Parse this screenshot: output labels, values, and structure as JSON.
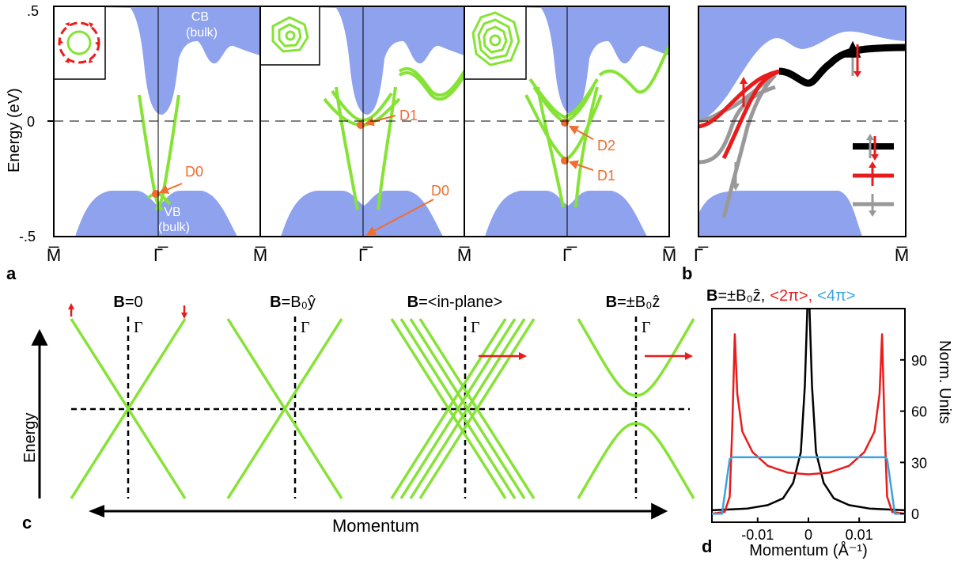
{
  "colors": {
    "bulk": "#8ea2ee",
    "surface": "#86e336",
    "dirac": "#ef6d2f",
    "spin_red": "#e81c1c",
    "spin_gray": "#999999",
    "spin_black": "#000000",
    "cyan": "#3aa3df"
  },
  "panel_a": {
    "ylabel": "Energy (eV)",
    "yticks": [
      ".5",
      "0",
      "-.5"
    ],
    "label": "a",
    "bulk_labels": [
      "CB",
      "(bulk)",
      "VB",
      "(bulk)"
    ],
    "xticks": [
      "M̅",
      "Γ̅",
      "M̅",
      "Γ̅",
      "M̅",
      "Γ̅",
      "M̅"
    ],
    "dirac_labels": [
      "D0",
      "D1",
      "D0",
      "D2",
      "D1"
    ]
  },
  "panel_b": {
    "label": "b",
    "xticks": [
      "Γ̅",
      "M̅"
    ]
  },
  "panel_c": {
    "label": "c",
    "titles": [
      {
        "bold": "B",
        "rest": "=0"
      },
      {
        "bold": "B",
        "rest": "=B₀ŷ"
      },
      {
        "bold": "B",
        "rest": "=<in-plane>"
      },
      {
        "bold": "B",
        "rest": "=±B₀ẑ"
      }
    ],
    "gamma": "Γ",
    "ylabel": "Energy",
    "xlabel": "Momentum"
  },
  "panel_d": {
    "label": "d",
    "title_bold": "B",
    "title_rest": "=±B₀ẑ,",
    "title_red": "<2π>,",
    "title_cyan": "<4π>",
    "ylabel": "Norm. Units",
    "xlabel": "Momentum (Å⁻¹)",
    "yticks": [
      "0",
      "30",
      "60",
      "90"
    ],
    "xticks": [
      "-0.01",
      "0",
      "0.01"
    ]
  },
  "chart_data": {
    "type": "line",
    "x_unit": "Å⁻¹",
    "xlim": [
      -0.019,
      0.019
    ],
    "ylim": [
      -5,
      120
    ],
    "series": [
      {
        "color": "black",
        "x": [
          -0.019,
          -0.012,
          -0.008,
          -0.005,
          -0.003,
          -0.0015,
          -0.0007,
          0,
          0.0007,
          0.0015,
          0.003,
          0.005,
          0.008,
          0.012,
          0.019
        ],
        "y": [
          2,
          3,
          5,
          9,
          18,
          36,
          75,
          140,
          75,
          36,
          18,
          9,
          5,
          3,
          2
        ]
      },
      {
        "color": "red",
        "x": [
          -0.019,
          -0.0165,
          -0.0155,
          -0.015,
          -0.0145,
          -0.014,
          -0.013,
          -0.011,
          -0.008,
          -0.004,
          0,
          0.004,
          0.008,
          0.011,
          0.013,
          0.014,
          0.0145,
          0.015,
          0.0155,
          0.0165,
          0.019
        ],
        "y": [
          0,
          1,
          10,
          50,
          105,
          70,
          48,
          36,
          28,
          24,
          23,
          24,
          28,
          36,
          48,
          70,
          105,
          50,
          10,
          1,
          0
        ]
      },
      {
        "color": "cyan",
        "x": [
          -0.019,
          -0.017,
          -0.0163,
          -0.0155,
          -0.015,
          0,
          0.015,
          0.0155,
          0.0163,
          0.017,
          0.019
        ],
        "y": [
          0,
          0,
          15,
          32,
          33,
          33,
          33,
          32,
          15,
          0,
          0
        ]
      }
    ]
  }
}
